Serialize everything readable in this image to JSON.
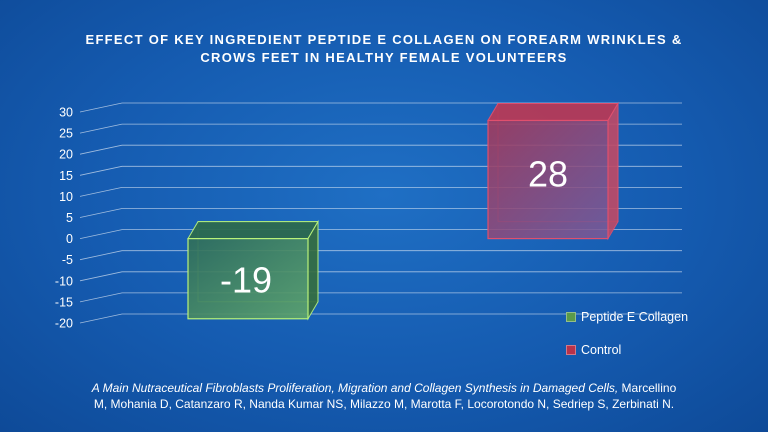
{
  "title": {
    "line1": "EFFECT OF KEY INGREDIENT PEPTIDE E COLLAGEN ON FOREARM WRINKLES &",
    "line2": "CROWS FEET IN HEALTHY FEMALE VOLUNTEERS"
  },
  "chart_data": {
    "type": "bar",
    "categories": [
      "Peptide E Collagen",
      "Control"
    ],
    "values": [
      -19,
      28
    ],
    "data_labels": [
      "-19",
      "28"
    ],
    "ylim": [
      -20,
      30
    ],
    "yticks": [
      30,
      25,
      20,
      15,
      10,
      5,
      0,
      -5,
      -10,
      -15,
      -20
    ],
    "grid": true,
    "three_d": true,
    "legend_position": "bottom-right",
    "colors": [
      "#3f8f5a",
      "#b8405e"
    ]
  },
  "legend": {
    "items": [
      {
        "label": "Peptide E Collagen",
        "color": "#5a9a4a"
      },
      {
        "label": "Control",
        "color": "#b8324a"
      }
    ]
  },
  "citation": {
    "italic": "A Main Nutraceutical Fibroblasts Proliferation, Migration and Collagen Synthesis in Damaged Cells,",
    "authors_line1": " Marcellino",
    "authors_line2": "M, Mohania D, Catanzaro R, Nanda Kumar NS, Milazzo M, Marotta F, Locorotondo N, Sedriep S, Zerbinati N."
  }
}
